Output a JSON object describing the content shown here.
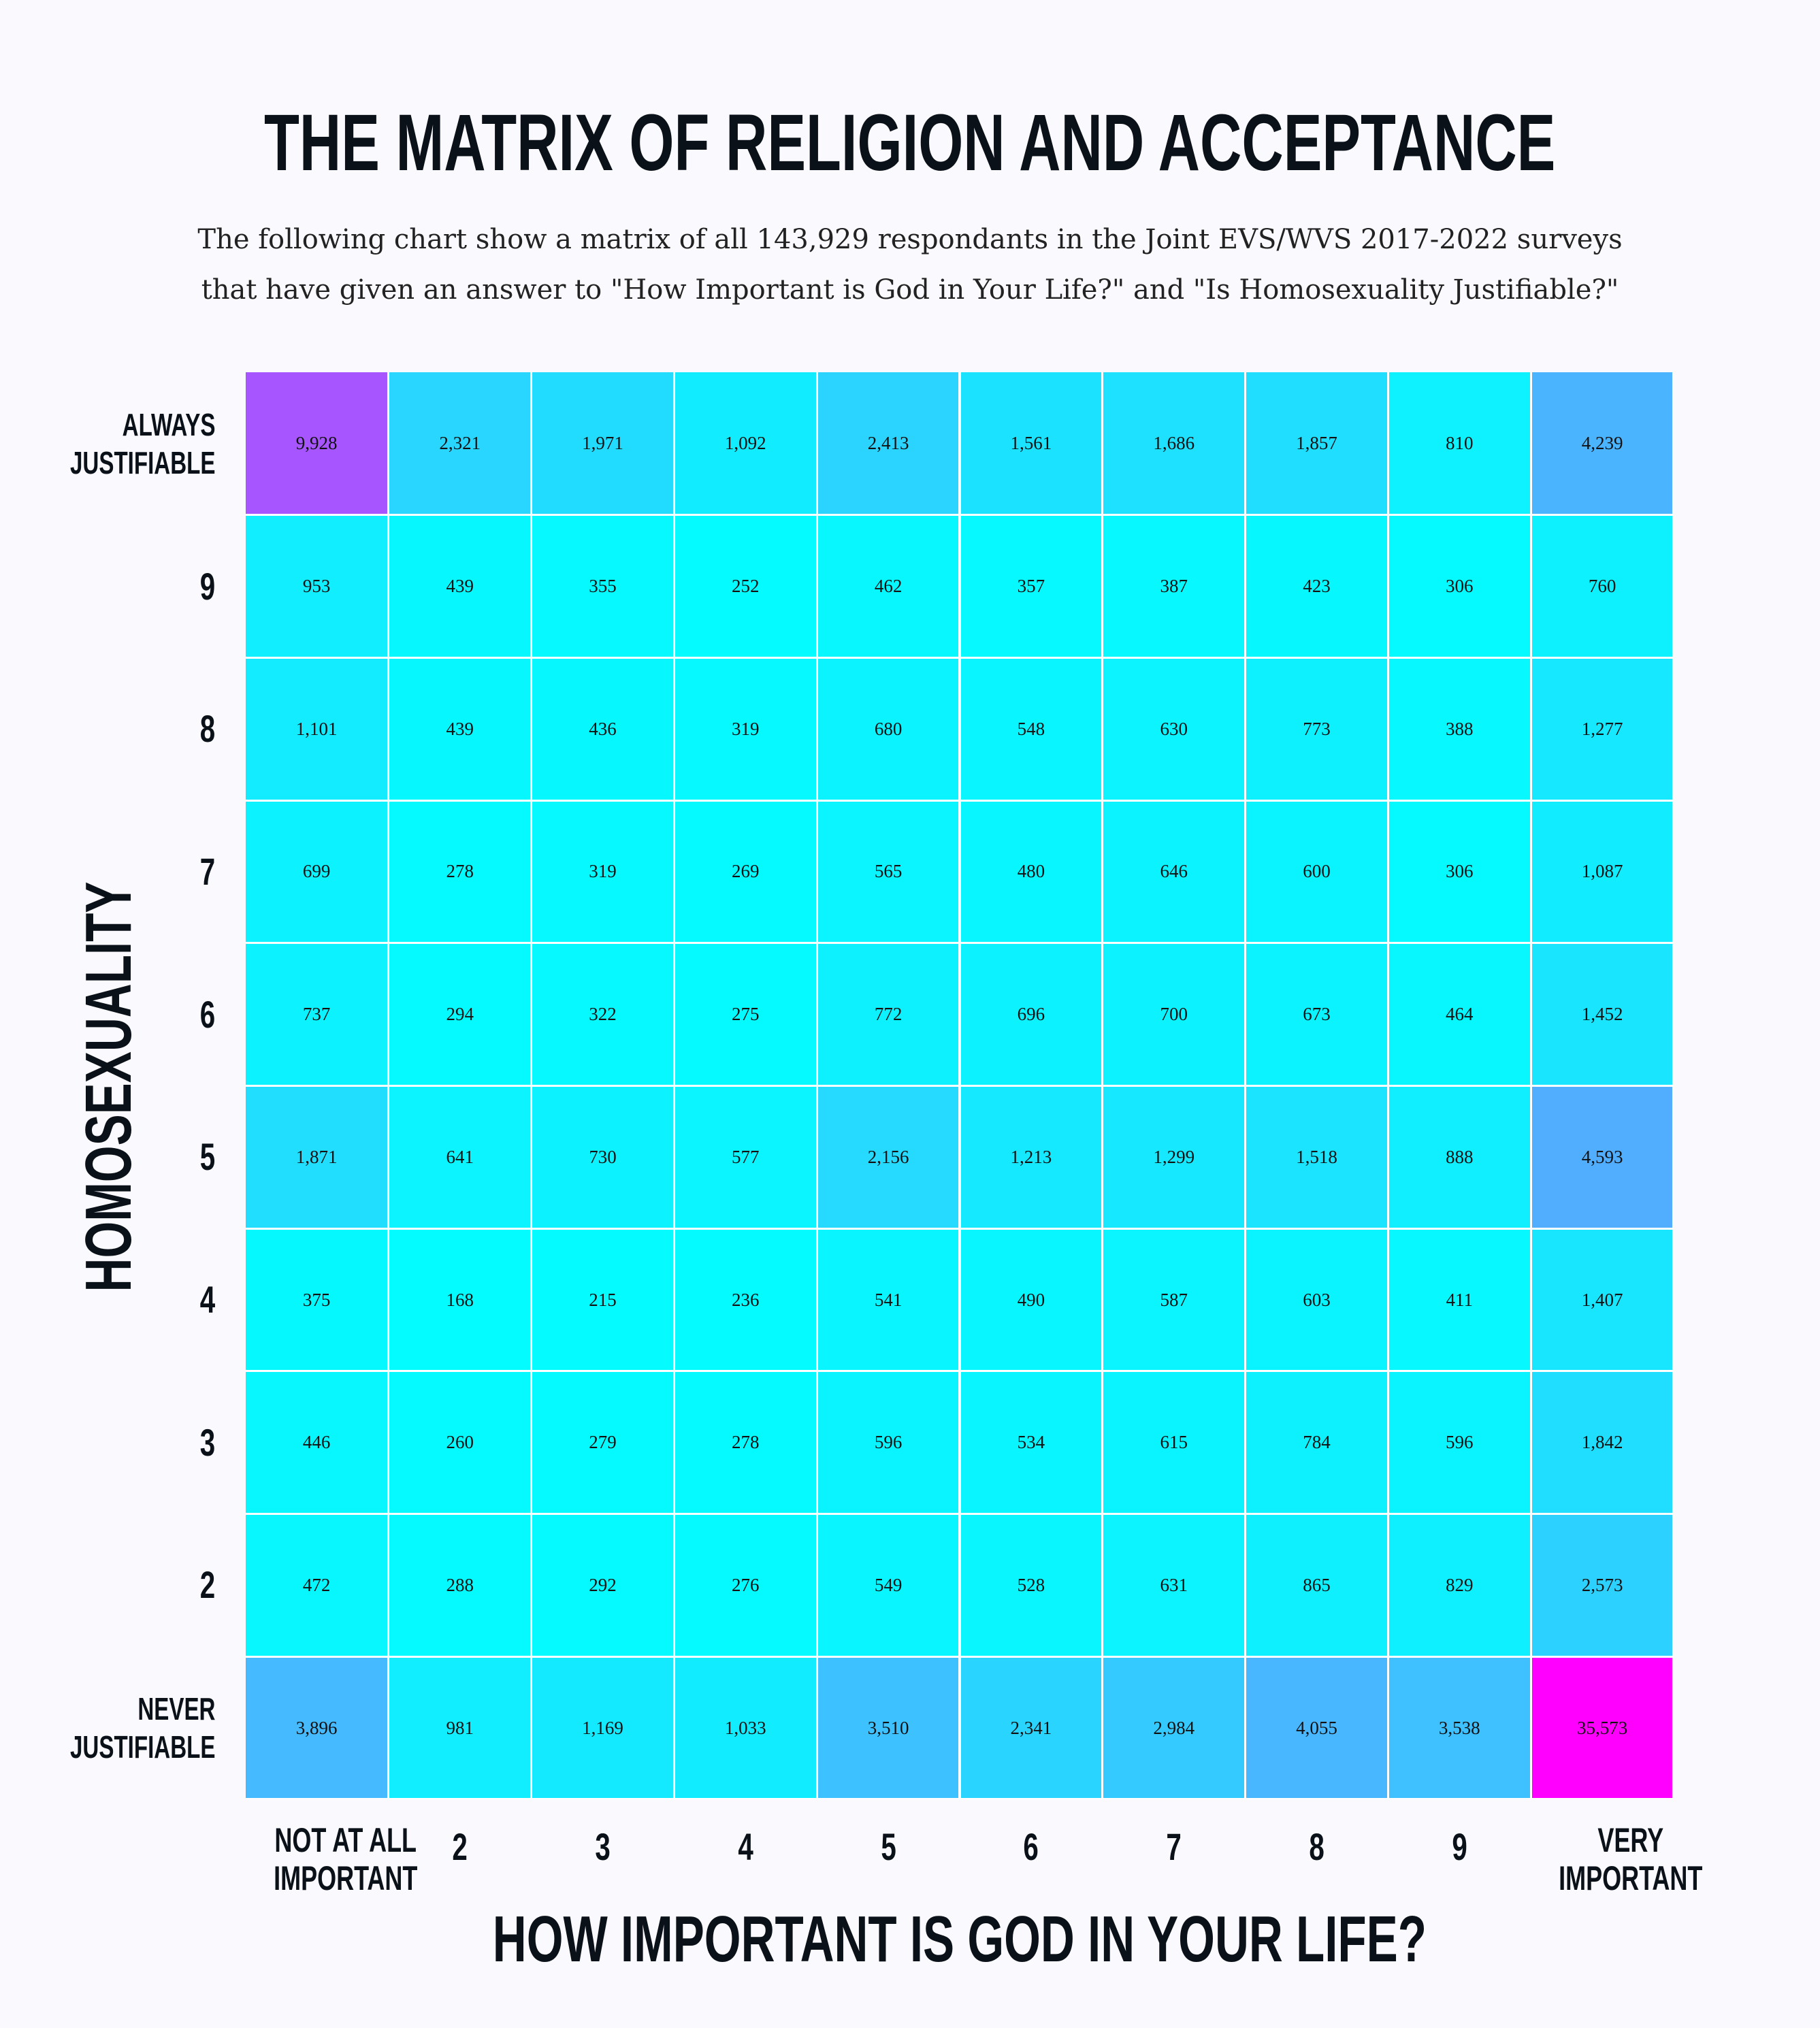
{
  "title": "THE MATRIX OF RELIGION AND ACCEPTANCE",
  "subtitle_lines": [
    "The following chart show a matrix of all 143,929 respondants in the Joint EVS/WVS 2017-2022 surveys",
    "that have given an answer to \"How Important is God in Your Life?\" and \"Is Homosexuality Justifiable?\""
  ],
  "chart_data": {
    "type": "heatmap",
    "title": "THE MATRIX OF RELIGION AND ACCEPTANCE",
    "xlabel": "HOW IMPORTANT IS GOD IN YOUR LIFE?",
    "ylabel": "HOMOSEXUALITY",
    "x_categories": [
      [
        "NOT AT ALL",
        "IMPORTANT"
      ],
      [
        "2"
      ],
      [
        "3"
      ],
      [
        "4"
      ],
      [
        "5"
      ],
      [
        "6"
      ],
      [
        "7"
      ],
      [
        "8"
      ],
      [
        "9"
      ],
      [
        "VERY",
        "IMPORTANT"
      ]
    ],
    "y_categories": [
      [
        "ALWAYS",
        "JUSTIFIABLE"
      ],
      [
        "9"
      ],
      [
        "8"
      ],
      [
        "7"
      ],
      [
        "6"
      ],
      [
        "5"
      ],
      [
        "4"
      ],
      [
        "3"
      ],
      [
        "2"
      ],
      [
        "NEVER",
        "JUSTIFIABLE"
      ]
    ],
    "values": [
      [
        9928,
        2321,
        1971,
        1092,
        2413,
        1561,
        1686,
        1857,
        810,
        4239
      ],
      [
        953,
        439,
        355,
        252,
        462,
        357,
        387,
        423,
        306,
        760
      ],
      [
        1101,
        439,
        436,
        319,
        680,
        548,
        630,
        773,
        388,
        1277
      ],
      [
        699,
        278,
        319,
        269,
        565,
        480,
        646,
        600,
        306,
        1087
      ],
      [
        737,
        294,
        322,
        275,
        772,
        696,
        700,
        673,
        464,
        1452
      ],
      [
        1871,
        641,
        730,
        577,
        2156,
        1213,
        1299,
        1518,
        888,
        4593
      ],
      [
        375,
        168,
        215,
        236,
        541,
        490,
        587,
        603,
        411,
        1407
      ],
      [
        446,
        260,
        279,
        278,
        596,
        534,
        615,
        784,
        596,
        1842
      ],
      [
        472,
        288,
        292,
        276,
        549,
        528,
        631,
        865,
        829,
        2573
      ],
      [
        3896,
        981,
        1169,
        1033,
        3510,
        2341,
        2984,
        4055,
        3538,
        35573
      ]
    ],
    "color_scale": [
      {
        "at": 0.0,
        "color": "#00ffff"
      },
      {
        "at": 0.03,
        "color": "#12ecff"
      },
      {
        "at": 0.12,
        "color": "#4cb3ff"
      },
      {
        "at": 0.28,
        "color": "#a855ff"
      },
      {
        "at": 1.0,
        "color": "#ff00ff"
      }
    ]
  }
}
